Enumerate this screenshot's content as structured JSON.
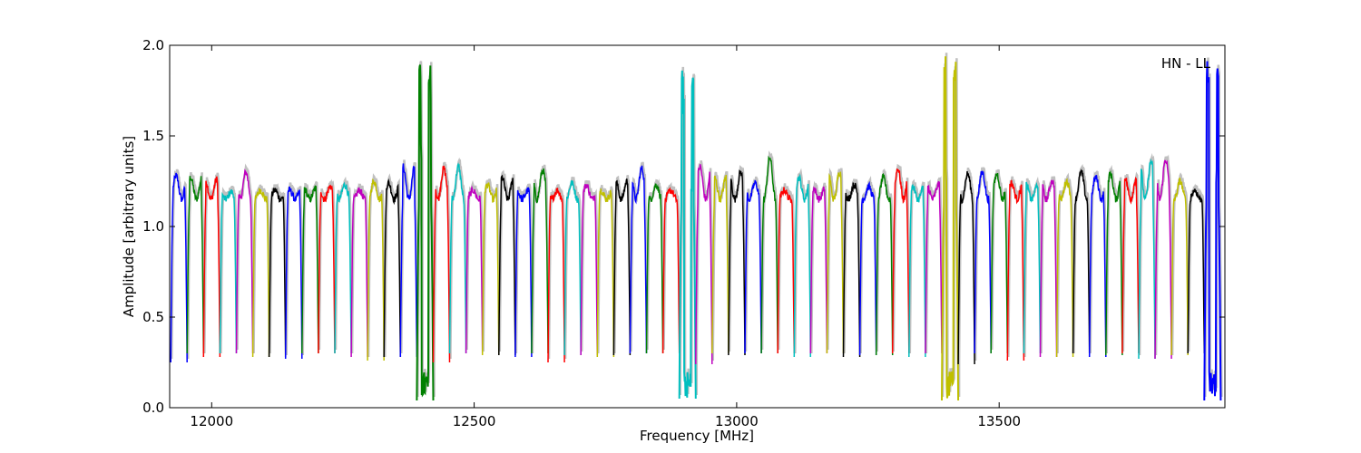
{
  "chart_data": {
    "type": "line",
    "title": "",
    "xlabel": "Frequency [MHz]",
    "ylabel": "Amplitude [arbitrary units]",
    "xlim": [
      11920,
      13930
    ],
    "ylim": [
      0.0,
      2.0
    ],
    "x_ticks": [
      {
        "value": 12000,
        "label": "12000"
      },
      {
        "value": 12500,
        "label": "12500"
      },
      {
        "value": 13000,
        "label": "13000"
      },
      {
        "value": 13500,
        "label": "13500"
      }
    ],
    "y_ticks": [
      {
        "value": 0.0,
        "label": "0.0"
      },
      {
        "value": 0.5,
        "label": "0.5"
      },
      {
        "value": 1.0,
        "label": "1.0"
      },
      {
        "value": 1.5,
        "label": "1.5"
      },
      {
        "value": 2.0,
        "label": "2.0"
      }
    ],
    "grid": false,
    "annotation": "HN - LL",
    "annotation_position": "top-right",
    "color_cycle": [
      "#0000ff",
      "#008000",
      "#ff0000",
      "#00bfbf",
      "#bf00bf",
      "#bfbf00",
      "#000000"
    ],
    "background_color": "#c0c0c0",
    "channel_width_mhz": 31.25,
    "channel_start_mhz": 11922,
    "channel_peaks": [
      1.28,
      1.27,
      1.26,
      1.19,
      1.3,
      1.2,
      1.2,
      1.2,
      1.21,
      1.22,
      1.23,
      1.2,
      1.25,
      1.24,
      1.33,
      1.8,
      1.32,
      1.33,
      1.2,
      1.23,
      1.27,
      1.2,
      1.31,
      1.2,
      1.24,
      1.23,
      1.2,
      1.25,
      1.32,
      1.23,
      1.2,
      1.8,
      1.33,
      1.27,
      1.3,
      1.24,
      1.38,
      1.2,
      1.27,
      1.21,
      1.3,
      1.23,
      1.22,
      1.27,
      1.32,
      1.22,
      1.23,
      1.85,
      1.29,
      1.3,
      1.29,
      1.24,
      1.23,
      1.25,
      1.25,
      1.3,
      1.27,
      1.29,
      1.27,
      1.36,
      1.37,
      1.25,
      1.2,
      1.85
    ],
    "channel_dips": [
      0.25,
      0.3,
      0.28,
      0.3,
      0.3,
      0.28,
      0.28,
      0.27,
      0.3,
      0.3,
      0.3,
      0.28,
      0.26,
      0.28,
      0.28,
      0.04,
      0.25,
      0.3,
      0.3,
      0.29,
      0.29,
      0.28,
      0.3,
      0.25,
      0.29,
      0.29,
      0.28,
      0.29,
      0.3,
      0.3,
      0.3,
      0.05,
      0.24,
      0.3,
      0.29,
      0.3,
      0.3,
      0.3,
      0.28,
      0.3,
      0.3,
      0.28,
      0.29,
      0.29,
      0.3,
      0.28,
      0.3,
      0.04,
      0.24,
      0.3,
      0.3,
      0.26,
      0.3,
      0.28,
      0.28,
      0.3,
      0.28,
      0.29,
      0.3,
      0.27,
      0.27,
      0.29,
      0.3,
      0.04
    ]
  }
}
